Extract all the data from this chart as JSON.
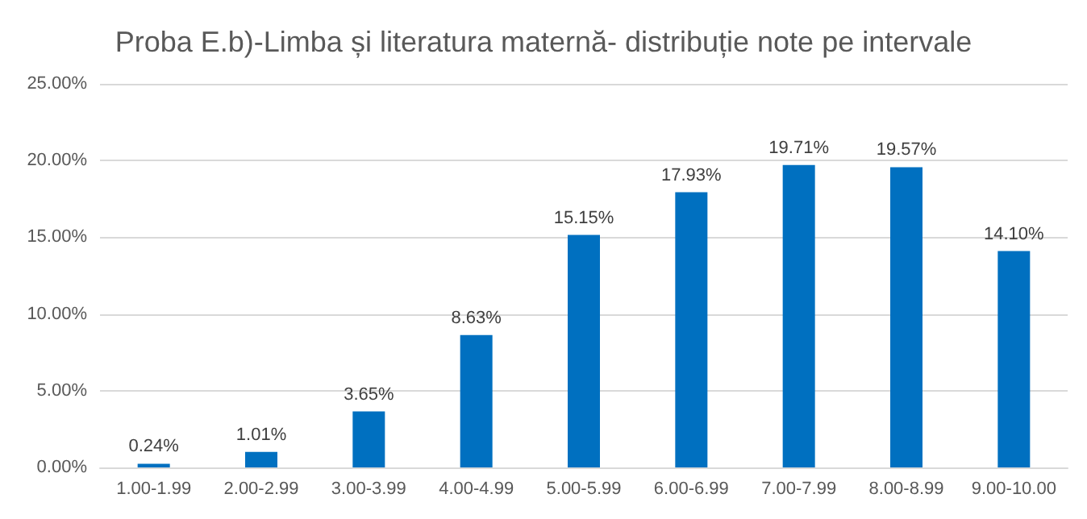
{
  "chart_data": {
    "type": "bar",
    "title": "Proba E.b)-Limba și literatura maternă- distribuție note pe intervale",
    "categories": [
      "1.00-1.99",
      "2.00-2.99",
      "3.00-3.99",
      "4.00-4.99",
      "5.00-5.99",
      "6.00-6.99",
      "7.00-7.99",
      "8.00-8.99",
      "9.00-10.00"
    ],
    "values": [
      0.24,
      1.01,
      3.65,
      8.63,
      15.15,
      17.93,
      19.71,
      19.57,
      14.1
    ],
    "value_labels": [
      "0.24%",
      "1.01%",
      "3.65%",
      "8.63%",
      "15.15%",
      "17.93%",
      "19.71%",
      "19.57%",
      "14.10%"
    ],
    "color": "#0070c0",
    "ylim": [
      0,
      25
    ],
    "yticks": [
      {
        "value": 0,
        "label": "0.00%"
      },
      {
        "value": 5,
        "label": "5.00%"
      },
      {
        "value": 10,
        "label": "10.00%"
      },
      {
        "value": 15,
        "label": "15.00%"
      },
      {
        "value": 20,
        "label": "20.00%"
      },
      {
        "value": 25,
        "label": "25.00%"
      }
    ],
    "grid": "y"
  }
}
